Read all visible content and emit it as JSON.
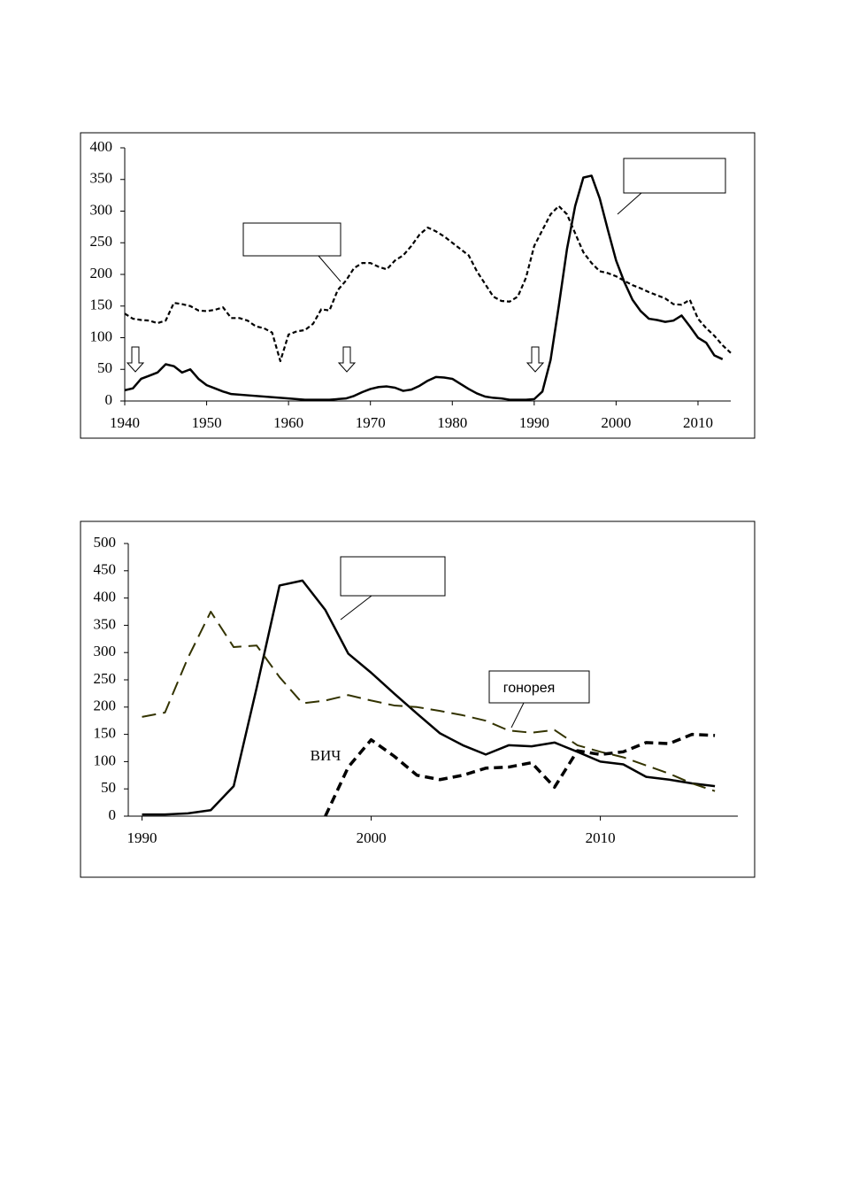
{
  "chart_data": [
    {
      "type": "line",
      "xlim": [
        1940,
        2014
      ],
      "ylim": [
        0,
        400
      ],
      "xticks": [
        1940,
        1950,
        1960,
        1970,
        1980,
        1990,
        2000,
        2010
      ],
      "yticks": [
        0,
        50,
        100,
        150,
        200,
        250,
        300,
        350,
        400
      ],
      "series": [
        {
          "color": "#000000",
          "style": "dashed",
          "x": [
            1940,
            1941,
            1942,
            1943,
            1944,
            1945,
            1946,
            1947,
            1948,
            1949,
            1950,
            1951,
            1952,
            1953,
            1954,
            1955,
            1956,
            1957,
            1958,
            1959,
            1960,
            1961,
            1962,
            1963,
            1964,
            1965,
            1966,
            1967,
            1968,
            1969,
            1970,
            1971,
            1972,
            1973,
            1974,
            1975,
            1976,
            1977,
            1978,
            1979,
            1980,
            1981,
            1982,
            1983,
            1984,
            1985,
            1986,
            1987,
            1988,
            1989,
            1990,
            1991,
            1992,
            1993,
            1994,
            1995,
            1996,
            1997,
            1998,
            1999,
            2000,
            2001,
            2002,
            2003,
            2004,
            2005,
            2006,
            2007,
            2008,
            2009,
            2010,
            2011,
            2012,
            2013,
            2014
          ],
          "values": [
            138,
            130,
            128,
            127,
            123,
            127,
            155,
            153,
            150,
            143,
            142,
            144,
            148,
            131,
            131,
            127,
            118,
            115,
            108,
            63,
            105,
            110,
            112,
            122,
            145,
            143,
            175,
            190,
            210,
            218,
            218,
            212,
            208,
            222,
            230,
            245,
            263,
            274,
            268,
            260,
            250,
            240,
            230,
            205,
            185,
            165,
            158,
            157,
            165,
            195,
            245,
            270,
            295,
            308,
            295,
            265,
            235,
            218,
            205,
            202,
            197,
            190,
            183,
            178,
            172,
            167,
            162,
            153,
            152,
            160,
            130,
            115,
            103,
            88,
            76
          ]
        },
        {
          "color": "#000000",
          "style": "solid",
          "x": [
            1940,
            1941,
            1942,
            1943,
            1944,
            1945,
            1946,
            1947,
            1948,
            1949,
            1950,
            1951,
            1952,
            1953,
            1955,
            1960,
            1962,
            1965,
            1967,
            1968,
            1969,
            1970,
            1971,
            1972,
            1973,
            1974,
            1975,
            1976,
            1977,
            1978,
            1979,
            1980,
            1981,
            1982,
            1983,
            1984,
            1985,
            1986,
            1987,
            1988,
            1989,
            1990,
            1991,
            1992,
            1993,
            1994,
            1995,
            1996,
            1997,
            1998,
            1999,
            2000,
            2001,
            2002,
            2003,
            2004,
            2005,
            2006,
            2007,
            2008,
            2009,
            2010,
            2011,
            2012,
            2013
          ],
          "values": [
            17,
            20,
            35,
            40,
            45,
            58,
            55,
            45,
            50,
            35,
            25,
            20,
            15,
            11,
            9,
            4,
            2,
            2,
            4,
            8,
            14,
            19,
            22,
            23,
            21,
            16,
            18,
            24,
            32,
            38,
            37,
            35,
            27,
            19,
            12,
            7,
            5,
            4,
            2,
            2,
            2,
            3,
            15,
            65,
            150,
            240,
            308,
            353,
            356,
            320,
            270,
            222,
            188,
            160,
            142,
            130,
            128,
            125,
            127,
            135,
            118,
            100,
            92,
            72,
            66
          ]
        }
      ]
    },
    {
      "type": "line",
      "xlim": [
        1989.4,
        2016
      ],
      "ylim": [
        0,
        500
      ],
      "xticks": [
        1990,
        2000,
        2010
      ],
      "yticks": [
        0,
        50,
        100,
        150,
        200,
        250,
        300,
        350,
        400,
        450,
        500
      ],
      "series": [
        {
          "color": "#000000",
          "style": "solid",
          "x": [
            1990,
            1991,
            1992,
            1993,
            1994,
            1995,
            1996,
            1997,
            1998,
            1999,
            2000,
            2001,
            2002,
            2003,
            2004,
            2005,
            2006,
            2007,
            2008,
            2009,
            2010,
            2011,
            2012,
            2013,
            2014,
            2015
          ],
          "values": [
            3,
            3,
            5,
            11,
            55,
            235,
            423,
            432,
            378,
            298,
            263,
            225,
            188,
            152,
            130,
            113,
            130,
            128,
            135,
            118,
            100,
            95,
            72,
            67,
            60,
            55
          ]
        },
        {
          "name": "гонорея",
          "color": "#333300",
          "style": "longdash",
          "x": [
            1990,
            1991,
            1992,
            1993,
            1994,
            1995,
            1996,
            1997,
            1998,
            1999,
            2000,
            2001,
            2002,
            2003,
            2004,
            2005,
            2006,
            2007,
            2008,
            2009,
            2010,
            2011,
            2012,
            2013,
            2014,
            2015
          ],
          "values": [
            182,
            190,
            290,
            375,
            310,
            313,
            255,
            207,
            212,
            222,
            212,
            203,
            200,
            193,
            185,
            175,
            157,
            153,
            158,
            130,
            118,
            108,
            93,
            78,
            60,
            46
          ]
        },
        {
          "name": "ВИЧ",
          "color": "#000000",
          "style": "bolddash",
          "x": [
            1998,
            1999,
            2000,
            2001,
            2002,
            2003,
            2004,
            2005,
            2006,
            2007,
            2008,
            2009,
            2010,
            2011,
            2012,
            2013,
            2014,
            2015
          ],
          "values": [
            0,
            90,
            140,
            110,
            75,
            67,
            75,
            88,
            90,
            98,
            53,
            120,
            113,
            118,
            135,
            133,
            150,
            148
          ]
        }
      ]
    }
  ]
}
